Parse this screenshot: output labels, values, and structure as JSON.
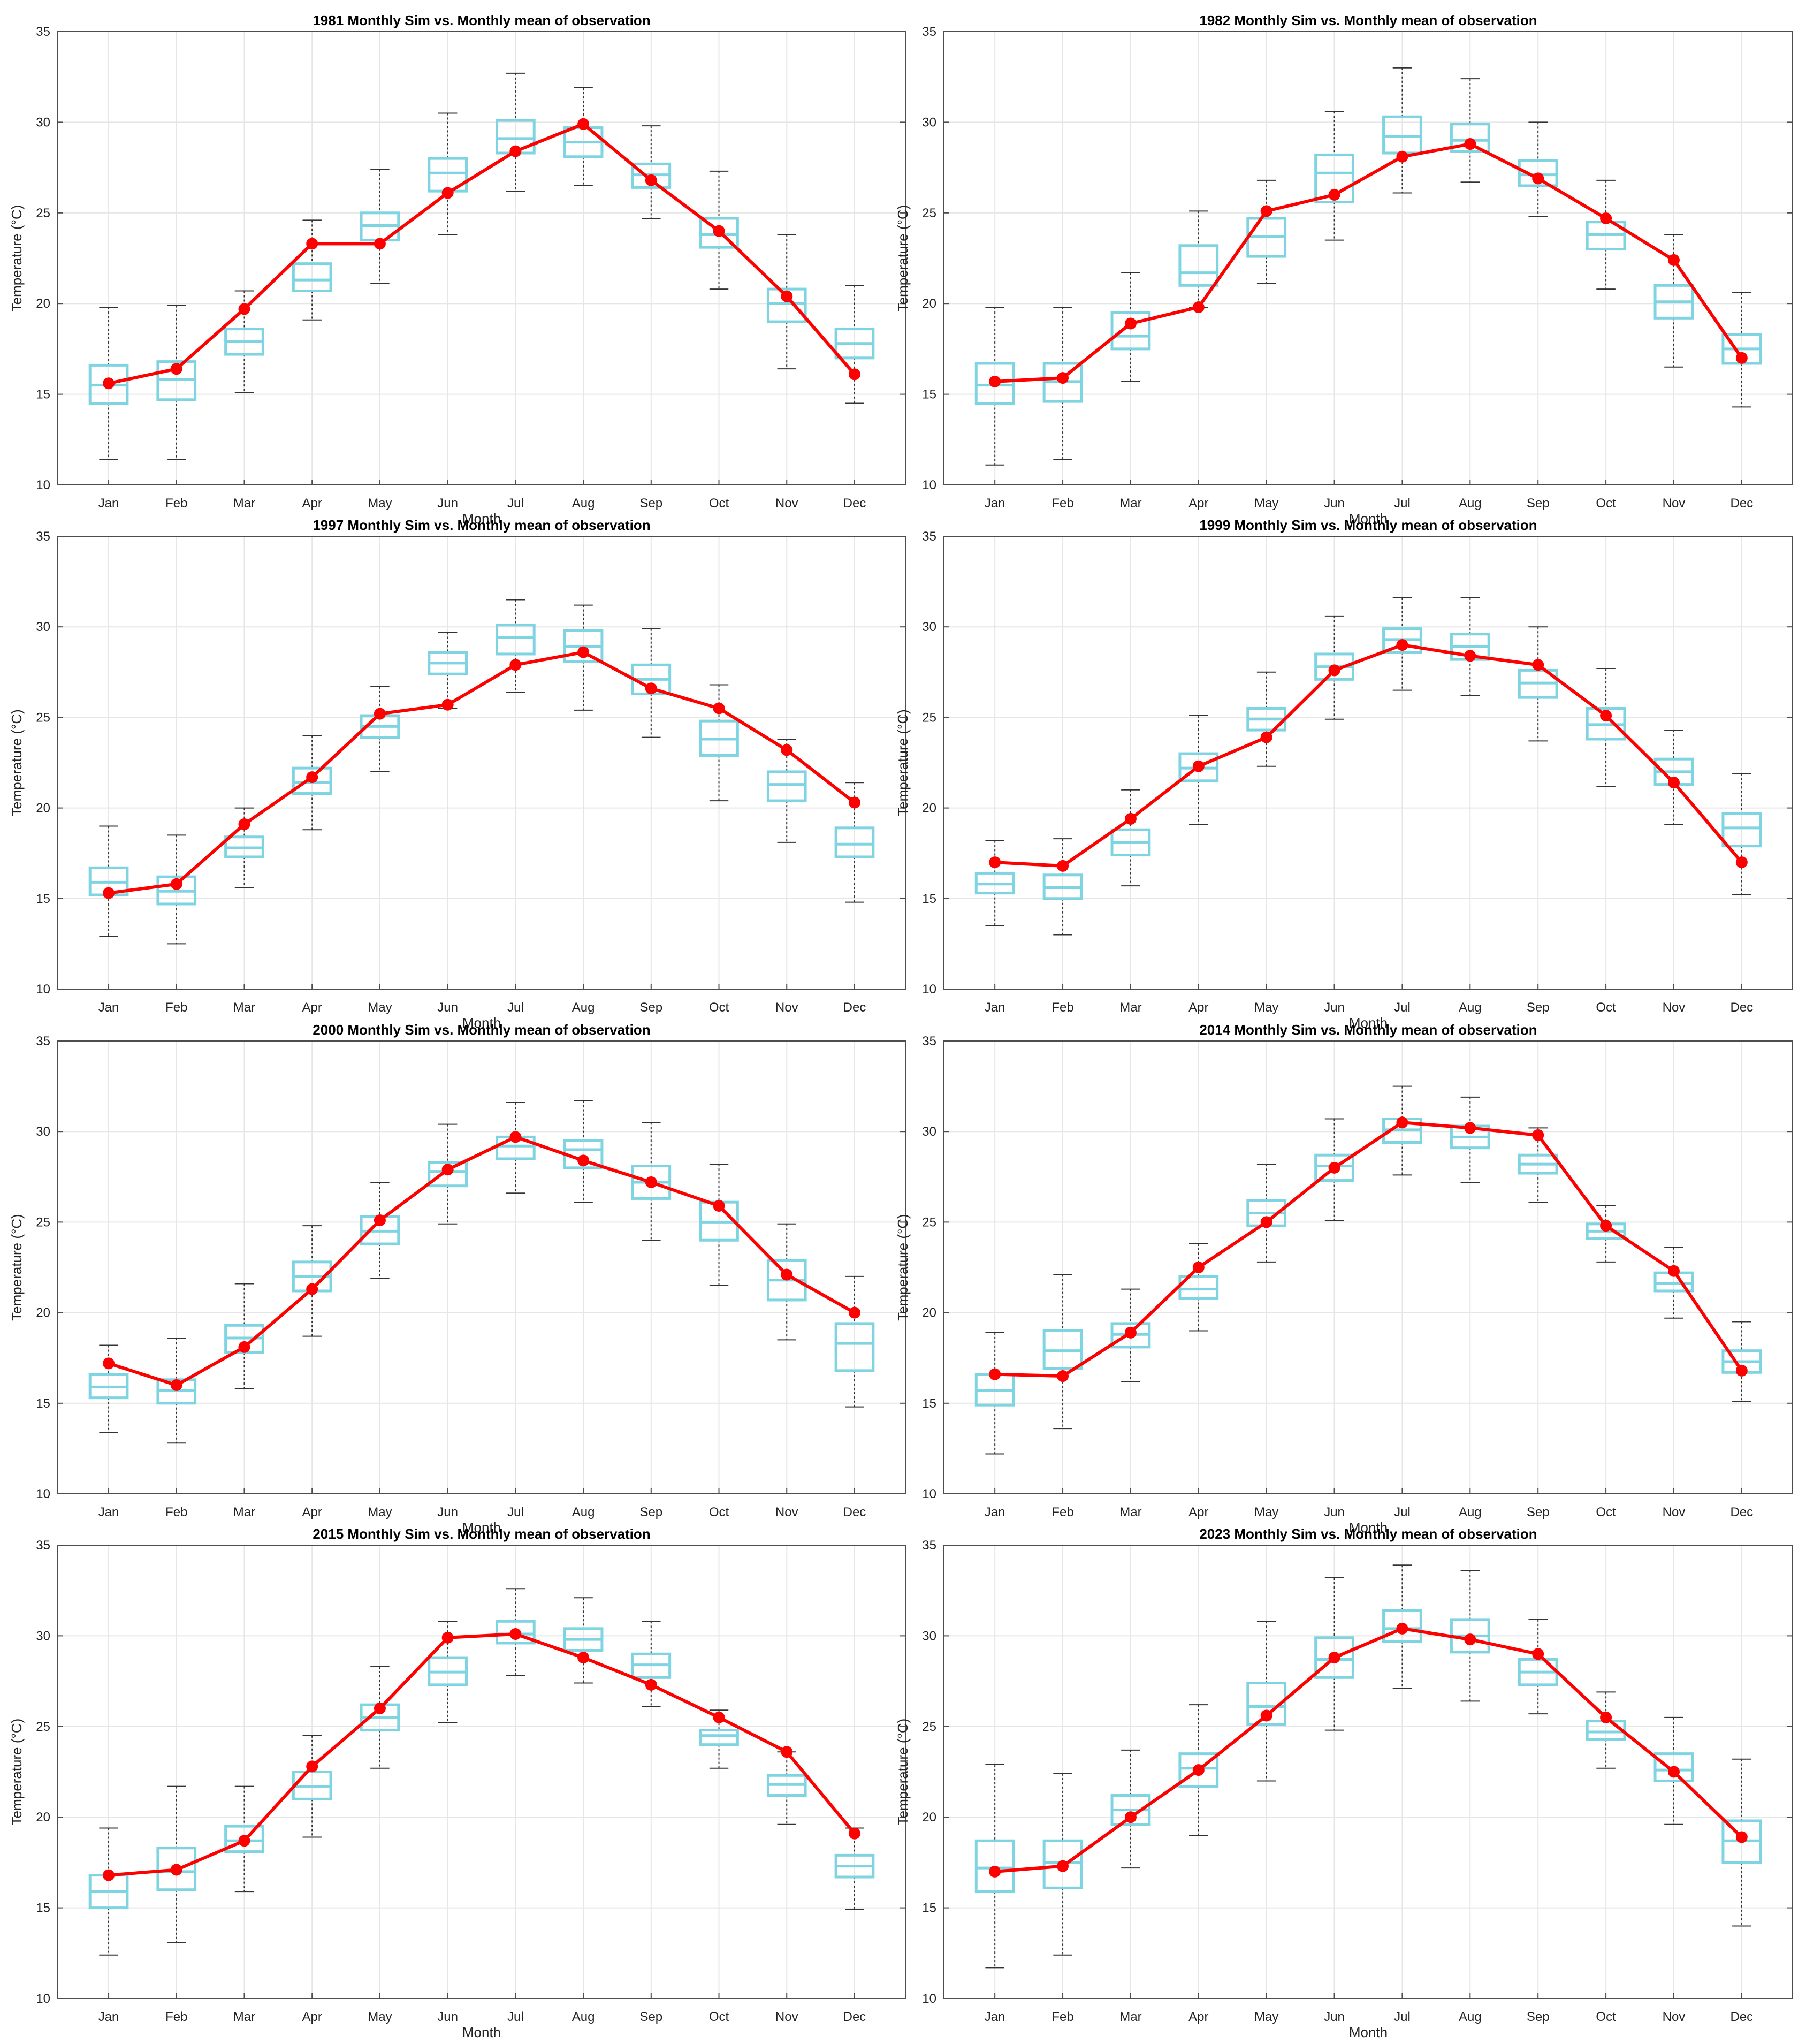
{
  "chart_data": [
    {
      "type": "box+line",
      "title": "1981 Monthly Sim vs. Monthly mean of observation",
      "xlabel": "Month",
      "ylabel": "Temperature (°C)",
      "ylim": [
        10,
        35
      ],
      "yticks": [
        10,
        15,
        20,
        25,
        30,
        35
      ],
      "categories": [
        "Jan",
        "Feb",
        "Mar",
        "Apr",
        "May",
        "Jun",
        "Jul",
        "Aug",
        "Sep",
        "Oct",
        "Nov",
        "Dec"
      ],
      "grid": true,
      "box_color": "#7fd4e2",
      "line_color": "#ff0000",
      "boxes": [
        {
          "min": 11.4,
          "q1": 14.5,
          "median": 15.5,
          "q3": 16.6,
          "max": 19.8
        },
        {
          "min": 11.4,
          "q1": 14.7,
          "median": 15.8,
          "q3": 16.8,
          "max": 19.9
        },
        {
          "min": 15.1,
          "q1": 17.2,
          "median": 17.9,
          "q3": 18.6,
          "max": 20.7
        },
        {
          "min": 19.1,
          "q1": 20.7,
          "median": 21.3,
          "q3": 22.2,
          "max": 24.6
        },
        {
          "min": 21.1,
          "q1": 23.5,
          "median": 24.3,
          "q3": 25.0,
          "max": 27.4
        },
        {
          "min": 23.8,
          "q1": 26.2,
          "median": 27.2,
          "q3": 28.0,
          "max": 30.5
        },
        {
          "min": 26.2,
          "q1": 28.3,
          "median": 29.1,
          "q3": 30.1,
          "max": 32.7
        },
        {
          "min": 26.5,
          "q1": 28.1,
          "median": 28.9,
          "q3": 29.7,
          "max": 31.9
        },
        {
          "min": 24.7,
          "q1": 26.4,
          "median": 27.1,
          "q3": 27.7,
          "max": 29.8
        },
        {
          "min": 20.8,
          "q1": 23.1,
          "median": 23.8,
          "q3": 24.7,
          "max": 27.3
        },
        {
          "min": 16.4,
          "q1": 19.0,
          "median": 20.0,
          "q3": 20.8,
          "max": 23.8
        },
        {
          "min": 14.5,
          "q1": 17.0,
          "median": 17.8,
          "q3": 18.6,
          "max": 21.0
        }
      ],
      "sim": [
        15.6,
        16.4,
        19.7,
        23.3,
        23.3,
        26.1,
        28.4,
        29.9,
        26.8,
        24.0,
        20.4,
        16.1
      ]
    },
    {
      "type": "box+line",
      "title": "1982 Monthly Sim vs. Monthly mean of observation",
      "xlabel": "Month",
      "ylabel": "Temperature (°C)",
      "ylim": [
        10,
        35
      ],
      "yticks": [
        10,
        15,
        20,
        25,
        30,
        35
      ],
      "categories": [
        "Jan",
        "Feb",
        "Mar",
        "Apr",
        "May",
        "Jun",
        "Jul",
        "Aug",
        "Sep",
        "Oct",
        "Nov",
        "Dec"
      ],
      "grid": true,
      "box_color": "#7fd4e2",
      "line_color": "#ff0000",
      "boxes": [
        {
          "min": 11.1,
          "q1": 14.5,
          "median": 15.5,
          "q3": 16.7,
          "max": 19.8
        },
        {
          "min": 11.4,
          "q1": 14.6,
          "median": 15.7,
          "q3": 16.7,
          "max": 19.8
        },
        {
          "min": 15.7,
          "q1": 17.5,
          "median": 18.2,
          "q3": 19.5,
          "max": 21.7
        },
        {
          "min": 19.8,
          "q1": 21.0,
          "median": 21.7,
          "q3": 23.2,
          "max": 25.1
        },
        {
          "min": 21.1,
          "q1": 22.6,
          "median": 23.7,
          "q3": 24.7,
          "max": 26.8
        },
        {
          "min": 23.5,
          "q1": 25.6,
          "median": 27.2,
          "q3": 28.2,
          "max": 30.6
        },
        {
          "min": 26.1,
          "q1": 28.3,
          "median": 29.2,
          "q3": 30.3,
          "max": 33.0
        },
        {
          "min": 26.7,
          "q1": 28.4,
          "median": 29.0,
          "q3": 29.9,
          "max": 32.4
        },
        {
          "min": 24.8,
          "q1": 26.5,
          "median": 27.1,
          "q3": 27.9,
          "max": 30.0
        },
        {
          "min": 20.8,
          "q1": 23.0,
          "median": 23.8,
          "q3": 24.5,
          "max": 26.8
        },
        {
          "min": 16.5,
          "q1": 19.2,
          "median": 20.1,
          "q3": 21.0,
          "max": 23.8
        },
        {
          "min": 14.3,
          "q1": 16.7,
          "median": 17.5,
          "q3": 18.3,
          "max": 20.6
        }
      ],
      "sim": [
        15.7,
        15.9,
        18.9,
        19.8,
        25.1,
        26.0,
        28.1,
        28.8,
        26.9,
        24.7,
        22.4,
        17.0
      ]
    },
    {
      "type": "box+line",
      "title": "1997 Monthly Sim vs. Monthly mean of observation",
      "xlabel": "Month",
      "ylabel": "Temperature (°C)",
      "ylim": [
        10,
        35
      ],
      "yticks": [
        10,
        15,
        20,
        25,
        30,
        35
      ],
      "categories": [
        "Jan",
        "Feb",
        "Mar",
        "Apr",
        "May",
        "Jun",
        "Jul",
        "Aug",
        "Sep",
        "Oct",
        "Nov",
        "Dec"
      ],
      "grid": true,
      "box_color": "#7fd4e2",
      "line_color": "#ff0000",
      "boxes": [
        {
          "min": 12.9,
          "q1": 15.2,
          "median": 15.9,
          "q3": 16.7,
          "max": 19.0
        },
        {
          "min": 12.5,
          "q1": 14.7,
          "median": 15.4,
          "q3": 16.2,
          "max": 18.5
        },
        {
          "min": 15.6,
          "q1": 17.3,
          "median": 17.8,
          "q3": 18.4,
          "max": 20.0
        },
        {
          "min": 18.8,
          "q1": 20.8,
          "median": 21.4,
          "q3": 22.2,
          "max": 24.0
        },
        {
          "min": 22.0,
          "q1": 23.9,
          "median": 24.5,
          "q3": 25.1,
          "max": 26.7
        },
        {
          "min": 25.5,
          "q1": 27.4,
          "median": 28.0,
          "q3": 28.6,
          "max": 29.7
        },
        {
          "min": 26.4,
          "q1": 28.5,
          "median": 29.4,
          "q3": 30.1,
          "max": 31.5
        },
        {
          "min": 25.4,
          "q1": 28.1,
          "median": 28.9,
          "q3": 29.8,
          "max": 31.2
        },
        {
          "min": 23.9,
          "q1": 26.3,
          "median": 27.1,
          "q3": 27.9,
          "max": 29.9
        },
        {
          "min": 20.4,
          "q1": 22.9,
          "median": 23.8,
          "q3": 24.8,
          "max": 26.8
        },
        {
          "min": 18.1,
          "q1": 20.4,
          "median": 21.3,
          "q3": 22.0,
          "max": 23.8
        },
        {
          "min": 14.8,
          "q1": 17.3,
          "median": 18.0,
          "q3": 18.9,
          "max": 21.4
        }
      ],
      "sim": [
        15.3,
        15.8,
        19.1,
        21.7,
        25.2,
        25.7,
        27.9,
        28.6,
        26.6,
        25.5,
        23.2,
        20.3
      ]
    },
    {
      "type": "box+line",
      "title": "1999 Monthly Sim vs. Monthly mean of observation",
      "xlabel": "Month",
      "ylabel": "Temperature (°C)",
      "ylim": [
        10,
        35
      ],
      "yticks": [
        10,
        15,
        20,
        25,
        30,
        35
      ],
      "categories": [
        "Jan",
        "Feb",
        "Mar",
        "Apr",
        "May",
        "Jun",
        "Jul",
        "Aug",
        "Sep",
        "Oct",
        "Nov",
        "Dec"
      ],
      "grid": true,
      "box_color": "#7fd4e2",
      "line_color": "#ff0000",
      "boxes": [
        {
          "min": 13.5,
          "q1": 15.3,
          "median": 15.8,
          "q3": 16.4,
          "max": 18.2
        },
        {
          "min": 13.0,
          "q1": 15.0,
          "median": 15.6,
          "q3": 16.3,
          "max": 18.3
        },
        {
          "min": 15.7,
          "q1": 17.4,
          "median": 18.1,
          "q3": 18.8,
          "max": 21.0
        },
        {
          "min": 19.1,
          "q1": 21.5,
          "median": 22.2,
          "q3": 23.0,
          "max": 25.1
        },
        {
          "min": 22.3,
          "q1": 24.3,
          "median": 24.9,
          "q3": 25.5,
          "max": 27.5
        },
        {
          "min": 24.9,
          "q1": 27.1,
          "median": 27.8,
          "q3": 28.5,
          "max": 30.6
        },
        {
          "min": 26.5,
          "q1": 28.6,
          "median": 29.3,
          "q3": 29.9,
          "max": 31.6
        },
        {
          "min": 26.2,
          "q1": 28.2,
          "median": 28.9,
          "q3": 29.6,
          "max": 31.6
        },
        {
          "min": 23.7,
          "q1": 26.1,
          "median": 26.9,
          "q3": 27.6,
          "max": 30.0
        },
        {
          "min": 21.2,
          "q1": 23.8,
          "median": 24.6,
          "q3": 25.5,
          "max": 27.7
        },
        {
          "min": 19.1,
          "q1": 21.3,
          "median": 22.0,
          "q3": 22.7,
          "max": 24.3
        },
        {
          "min": 15.2,
          "q1": 17.9,
          "median": 18.9,
          "q3": 19.7,
          "max": 21.9
        }
      ],
      "sim": [
        17.0,
        16.8,
        19.4,
        22.3,
        23.9,
        27.6,
        29.0,
        28.4,
        27.9,
        25.1,
        21.4,
        17.0
      ]
    },
    {
      "type": "box+line",
      "title": "2000 Monthly Sim vs. Monthly mean of observation",
      "xlabel": "Month",
      "ylabel": "Temperature (°C)",
      "ylim": [
        10,
        35
      ],
      "yticks": [
        10,
        15,
        20,
        25,
        30,
        35
      ],
      "categories": [
        "Jan",
        "Feb",
        "Mar",
        "Apr",
        "May",
        "Jun",
        "Jul",
        "Aug",
        "Sep",
        "Oct",
        "Nov",
        "Dec"
      ],
      "grid": true,
      "box_color": "#7fd4e2",
      "line_color": "#ff0000",
      "boxes": [
        {
          "min": 13.4,
          "q1": 15.3,
          "median": 15.9,
          "q3": 16.6,
          "max": 18.2
        },
        {
          "min": 12.8,
          "q1": 15.0,
          "median": 15.7,
          "q3": 16.3,
          "max": 18.6
        },
        {
          "min": 15.8,
          "q1": 17.8,
          "median": 18.6,
          "q3": 19.3,
          "max": 21.6
        },
        {
          "min": 18.7,
          "q1": 21.2,
          "median": 22.0,
          "q3": 22.8,
          "max": 24.8
        },
        {
          "min": 21.9,
          "q1": 23.8,
          "median": 24.5,
          "q3": 25.3,
          "max": 27.2
        },
        {
          "min": 24.9,
          "q1": 27.0,
          "median": 27.8,
          "q3": 28.3,
          "max": 30.4
        },
        {
          "min": 26.6,
          "q1": 28.5,
          "median": 29.2,
          "q3": 29.7,
          "max": 31.6
        },
        {
          "min": 26.1,
          "q1": 28.0,
          "median": 29.0,
          "q3": 29.5,
          "max": 31.7
        },
        {
          "min": 24.0,
          "q1": 26.3,
          "median": 27.2,
          "q3": 28.1,
          "max": 30.5
        },
        {
          "min": 21.5,
          "q1": 24.0,
          "median": 25.0,
          "q3": 26.1,
          "max": 28.2
        },
        {
          "min": 18.5,
          "q1": 20.7,
          "median": 21.8,
          "q3": 22.9,
          "max": 24.9
        },
        {
          "min": 14.8,
          "q1": 16.8,
          "median": 18.3,
          "q3": 19.4,
          "max": 22.0
        }
      ],
      "sim": [
        17.2,
        16.0,
        18.1,
        21.3,
        25.1,
        27.9,
        29.7,
        28.4,
        27.2,
        25.9,
        22.1,
        20.0
      ]
    },
    {
      "type": "box+line",
      "title": "2014 Monthly Sim vs. Monthly mean of observation",
      "xlabel": "Month",
      "ylabel": "Temperature (°C)",
      "ylim": [
        10,
        35
      ],
      "yticks": [
        10,
        15,
        20,
        25,
        30,
        35
      ],
      "categories": [
        "Jan",
        "Feb",
        "Mar",
        "Apr",
        "May",
        "Jun",
        "Jul",
        "Aug",
        "Sep",
        "Oct",
        "Nov",
        "Dec"
      ],
      "grid": true,
      "box_color": "#7fd4e2",
      "line_color": "#ff0000",
      "boxes": [
        {
          "min": 12.2,
          "q1": 14.9,
          "median": 15.7,
          "q3": 16.6,
          "max": 18.9
        },
        {
          "min": 13.6,
          "q1": 16.9,
          "median": 17.9,
          "q3": 19.0,
          "max": 22.1
        },
        {
          "min": 16.2,
          "q1": 18.1,
          "median": 18.8,
          "q3": 19.4,
          "max": 21.3
        },
        {
          "min": 19.0,
          "q1": 20.8,
          "median": 21.3,
          "q3": 22.0,
          "max": 23.8
        },
        {
          "min": 22.8,
          "q1": 24.8,
          "median": 25.5,
          "q3": 26.2,
          "max": 28.2
        },
        {
          "min": 25.1,
          "q1": 27.3,
          "median": 28.1,
          "q3": 28.7,
          "max": 30.7
        },
        {
          "min": 27.6,
          "q1": 29.4,
          "median": 30.1,
          "q3": 30.7,
          "max": 32.5
        },
        {
          "min": 27.2,
          "q1": 29.1,
          "median": 29.7,
          "q3": 30.3,
          "max": 31.9
        },
        {
          "min": 26.1,
          "q1": 27.7,
          "median": 28.2,
          "q3": 28.7,
          "max": 30.2
        },
        {
          "min": 22.8,
          "q1": 24.1,
          "median": 24.5,
          "q3": 24.9,
          "max": 25.9
        },
        {
          "min": 19.7,
          "q1": 21.2,
          "median": 21.6,
          "q3": 22.2,
          "max": 23.6
        },
        {
          "min": 15.1,
          "q1": 16.7,
          "median": 17.3,
          "q3": 17.9,
          "max": 19.5
        }
      ],
      "sim": [
        16.6,
        16.5,
        18.9,
        22.5,
        25.0,
        28.0,
        30.5,
        30.2,
        29.8,
        24.8,
        22.3,
        16.8
      ]
    },
    {
      "type": "box+line",
      "title": "2015 Monthly Sim vs. Monthly mean of observation",
      "xlabel": "Month",
      "ylabel": "Temperature (°C)",
      "ylim": [
        10,
        35
      ],
      "yticks": [
        10,
        15,
        20,
        25,
        30,
        35
      ],
      "categories": [
        "Jan",
        "Feb",
        "Mar",
        "Apr",
        "May",
        "Jun",
        "Jul",
        "Aug",
        "Sep",
        "Oct",
        "Nov",
        "Dec"
      ],
      "grid": true,
      "box_color": "#7fd4e2",
      "line_color": "#ff0000",
      "boxes": [
        {
          "min": 12.4,
          "q1": 15.0,
          "median": 15.9,
          "q3": 16.8,
          "max": 19.4
        },
        {
          "min": 13.1,
          "q1": 16.0,
          "median": 17.0,
          "q3": 18.3,
          "max": 21.7
        },
        {
          "min": 15.9,
          "q1": 18.1,
          "median": 18.7,
          "q3": 19.5,
          "max": 21.7
        },
        {
          "min": 18.9,
          "q1": 21.0,
          "median": 21.7,
          "q3": 22.5,
          "max": 24.5
        },
        {
          "min": 22.7,
          "q1": 24.8,
          "median": 25.5,
          "q3": 26.2,
          "max": 28.3
        },
        {
          "min": 25.2,
          "q1": 27.3,
          "median": 28.0,
          "q3": 28.8,
          "max": 30.8
        },
        {
          "min": 27.8,
          "q1": 29.6,
          "median": 30.1,
          "q3": 30.8,
          "max": 32.6
        },
        {
          "min": 27.4,
          "q1": 29.2,
          "median": 29.8,
          "q3": 30.4,
          "max": 32.1
        },
        {
          "min": 26.1,
          "q1": 27.7,
          "median": 28.4,
          "q3": 29.0,
          "max": 30.8
        },
        {
          "min": 22.7,
          "q1": 24.0,
          "median": 24.5,
          "q3": 24.8,
          "max": 25.9
        },
        {
          "min": 19.6,
          "q1": 21.2,
          "median": 21.8,
          "q3": 22.3,
          "max": 23.6
        },
        {
          "min": 14.9,
          "q1": 16.7,
          "median": 17.3,
          "q3": 17.9,
          "max": 19.4
        }
      ],
      "sim": [
        16.8,
        17.1,
        18.7,
        22.8,
        26.0,
        29.9,
        30.1,
        28.8,
        27.3,
        25.5,
        23.6,
        19.1
      ]
    },
    {
      "type": "box+line",
      "title": "2023 Monthly Sim vs. Monthly mean of observation",
      "xlabel": "Month",
      "ylabel": "Temperature (°C)",
      "ylim": [
        10,
        35
      ],
      "yticks": [
        10,
        15,
        20,
        25,
        30,
        35
      ],
      "categories": [
        "Jan",
        "Feb",
        "Mar",
        "Apr",
        "May",
        "Jun",
        "Jul",
        "Aug",
        "Sep",
        "Oct",
        "Nov",
        "Dec"
      ],
      "grid": true,
      "box_color": "#7fd4e2",
      "line_color": "#ff0000",
      "boxes": [
        {
          "min": 11.7,
          "q1": 15.9,
          "median": 17.2,
          "q3": 18.7,
          "max": 22.9
        },
        {
          "min": 12.4,
          "q1": 16.1,
          "median": 17.5,
          "q3": 18.7,
          "max": 22.4
        },
        {
          "min": 17.2,
          "q1": 19.6,
          "median": 20.4,
          "q3": 21.2,
          "max": 23.7
        },
        {
          "min": 19.0,
          "q1": 21.7,
          "median": 22.7,
          "q3": 23.5,
          "max": 26.2
        },
        {
          "min": 22.0,
          "q1": 25.1,
          "median": 26.1,
          "q3": 27.4,
          "max": 30.8
        },
        {
          "min": 24.8,
          "q1": 27.7,
          "median": 28.7,
          "q3": 29.9,
          "max": 33.2
        },
        {
          "min": 27.1,
          "q1": 29.7,
          "median": 30.4,
          "q3": 31.4,
          "max": 33.9
        },
        {
          "min": 26.4,
          "q1": 29.1,
          "median": 30.0,
          "q3": 30.9,
          "max": 33.6
        },
        {
          "min": 25.7,
          "q1": 27.3,
          "median": 28.0,
          "q3": 28.7,
          "max": 30.9
        },
        {
          "min": 22.7,
          "q1": 24.3,
          "median": 24.7,
          "q3": 25.3,
          "max": 26.9
        },
        {
          "min": 19.6,
          "q1": 22.0,
          "median": 22.6,
          "q3": 23.5,
          "max": 25.5
        },
        {
          "min": 14.0,
          "q1": 17.5,
          "median": 18.7,
          "q3": 19.8,
          "max": 23.2
        }
      ],
      "sim": [
        17.0,
        17.3,
        20.0,
        22.6,
        25.6,
        28.8,
        30.4,
        29.8,
        29.0,
        25.5,
        22.5,
        18.9
      ]
    }
  ]
}
